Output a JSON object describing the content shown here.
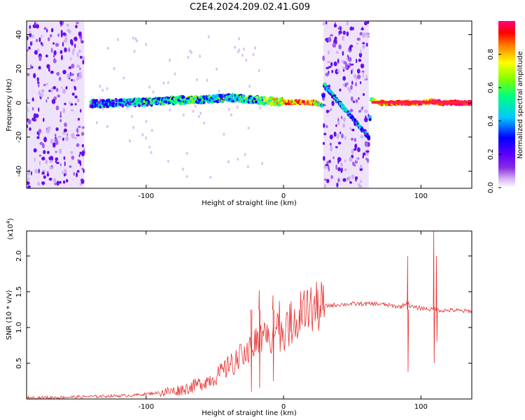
{
  "title": "C2E4.2024.209.02.41.G09",
  "chart_data": [
    {
      "type": "heatmap",
      "title": "C2E4.2024.209.02.41.G09",
      "xlabel": "Height of straight line (km)",
      "ylabel": "Frequency (Hz)",
      "xlim": [
        -187,
        137
      ],
      "ylim": [
        -50,
        48
      ],
      "x_ticks": [
        "-100",
        "0",
        "100"
      ],
      "x_tick_values": [
        -100,
        0,
        100
      ],
      "y_ticks": [
        "40",
        "20",
        "0",
        "-20",
        "-40"
      ],
      "y_tick_values": [
        40,
        20,
        0,
        -20,
        -40
      ],
      "colorbar": {
        "label": "Normalized spectral amplitude",
        "range": [
          0,
          1
        ],
        "ticks": [
          "0.0",
          "0.2",
          "0.4",
          "0.6",
          "0.8"
        ],
        "tick_values": [
          0.0,
          0.2,
          0.4,
          0.6,
          0.8
        ],
        "colormap": [
          "#ffffff",
          "#d8b8f4",
          "#8a2be2",
          "#5a00ff",
          "#0000ff",
          "#00c8ff",
          "#00ff80",
          "#80ff00",
          "#ffff00",
          "#ff8000",
          "#ff0000",
          "#ff0080"
        ]
      },
      "noise_bands_km": [
        [
          -187,
          -145
        ],
        [
          29,
          62
        ]
      ],
      "ridge": {
        "x": [
          -140,
          -120,
          -100,
          -80,
          -60,
          -40,
          -25,
          -10,
          0,
          10,
          22,
          28,
          30,
          62,
          64,
          70,
          80,
          90,
          100,
          108,
          115,
          125,
          137
        ],
        "y": [
          -0.5,
          0,
          0.5,
          1.5,
          2.0,
          3.0,
          2.0,
          1.0,
          0.5,
          0.3,
          0.2,
          -1,
          10,
          -20,
          2,
          0,
          0,
          0,
          0,
          1,
          0,
          0,
          0
        ],
        "amplitude": [
          0.35,
          0.4,
          0.45,
          0.5,
          0.5,
          0.45,
          0.5,
          0.6,
          0.75,
          0.8,
          0.85,
          0.5,
          0.4,
          0.4,
          0.6,
          0.75,
          0.85,
          0.9,
          0.9,
          0.8,
          0.95,
          1.0,
          1.0
        ]
      }
    },
    {
      "type": "line",
      "xlabel": "Height of straight line (km)",
      "ylabel": "SNR (10 * v/v)",
      "y_scale_label": "(x10",
      "y_scale_exp": "4",
      "y_scale_tail": ")",
      "xlim": [
        -187,
        137
      ],
      "ylim": [
        0,
        2.35
      ],
      "x_ticks": [
        "-100",
        "0",
        "100"
      ],
      "x_tick_values": [
        -100,
        0,
        100
      ],
      "y_ticks": [
        "0.5",
        "1.0",
        "1.5",
        "2.0"
      ],
      "y_tick_values": [
        0.5,
        1.0,
        1.5,
        2.0
      ],
      "color": "#e83030",
      "series": [
        {
          "x": [
            -187,
            -170,
            -150,
            -130,
            -110,
            -100,
            -90,
            -80,
            -70,
            -60,
            -50,
            -40,
            -30,
            -25,
            -20,
            -15,
            -10,
            -5,
            0,
            5,
            10,
            15,
            20,
            25,
            30,
            40,
            50,
            60,
            70,
            80,
            85,
            88,
            90,
            92,
            95,
            100,
            105,
            108,
            110,
            112,
            115,
            120,
            125,
            130,
            137
          ],
          "y": [
            0.02,
            0.02,
            0.03,
            0.04,
            0.05,
            0.07,
            0.09,
            0.11,
            0.15,
            0.22,
            0.3,
            0.45,
            0.6,
            0.7,
            0.8,
            0.85,
            0.9,
            0.92,
            0.95,
            1.05,
            1.15,
            1.2,
            1.25,
            1.28,
            1.3,
            1.32,
            1.33,
            1.33,
            1.33,
            1.3,
            1.29,
            1.32,
            1.35,
            1.3,
            1.28,
            1.27,
            1.26,
            1.25,
            1.27,
            1.25,
            1.24,
            1.24,
            1.24,
            1.23,
            1.23
          ]
        }
      ],
      "spikes": [
        {
          "x": 90,
          "y_high": 2.0,
          "y_low": 0.38
        },
        {
          "x": 109,
          "y_high": 2.35,
          "y_low": 0.5
        },
        {
          "x": 111,
          "y_high": 2.0,
          "y_low": 0.8
        },
        {
          "x": -18,
          "y_high": 1.52,
          "y_low": 0.15
        },
        {
          "x": -8,
          "y_high": 1.45,
          "y_low": 0.25
        },
        {
          "x": -24,
          "y_high": 1.1,
          "y_low": 0.1
        }
      ]
    }
  ]
}
